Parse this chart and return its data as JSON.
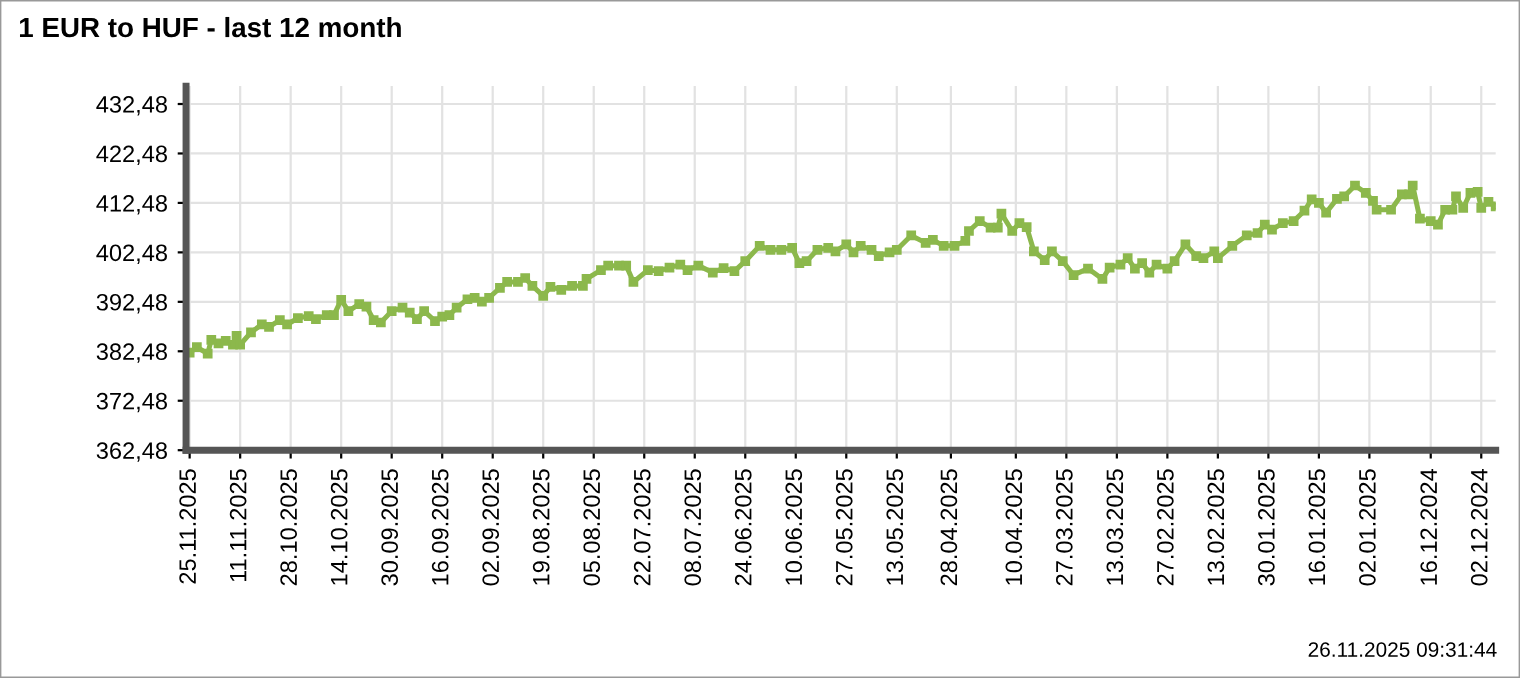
{
  "chart_data": {
    "type": "line",
    "title": "1 EUR to HUF - last 12 month",
    "x": [
      "2025-11-25",
      "2025-11-23",
      "2025-11-20",
      "2025-11-19",
      "2025-11-17",
      "2025-11-15",
      "2025-11-13",
      "2025-11-12",
      "2025-11-11",
      "2025-11-08",
      "2025-11-05",
      "2025-11-03",
      "2025-10-31",
      "2025-10-29",
      "2025-10-26",
      "2025-10-23",
      "2025-10-21",
      "2025-10-18",
      "2025-10-16",
      "2025-10-14",
      "2025-10-12",
      "2025-10-09",
      "2025-10-07",
      "2025-10-05",
      "2025-10-03",
      "2025-09-30",
      "2025-09-27",
      "2025-09-25",
      "2025-09-23",
      "2025-09-21",
      "2025-09-18",
      "2025-09-16",
      "2025-09-14",
      "2025-09-12",
      "2025-09-09",
      "2025-09-07",
      "2025-09-05",
      "2025-09-03",
      "2025-08-31",
      "2025-08-29",
      "2025-08-26",
      "2025-08-24",
      "2025-08-22",
      "2025-08-19",
      "2025-08-17",
      "2025-08-14",
      "2025-08-11",
      "2025-08-08",
      "2025-08-07",
      "2025-08-03",
      "2025-08-01",
      "2025-07-29",
      "2025-07-27",
      "2025-07-25",
      "2025-07-21",
      "2025-07-18",
      "2025-07-15",
      "2025-07-12",
      "2025-07-10",
      "2025-07-07",
      "2025-07-03",
      "2025-06-30",
      "2025-06-27",
      "2025-06-24",
      "2025-06-20",
      "2025-06-17",
      "2025-06-14",
      "2025-06-11",
      "2025-06-09",
      "2025-06-07",
      "2025-06-04",
      "2025-06-01",
      "2025-05-30",
      "2025-05-27",
      "2025-05-25",
      "2025-05-23",
      "2025-05-20",
      "2025-05-18",
      "2025-05-15",
      "2025-05-13",
      "2025-05-09",
      "2025-05-05",
      "2025-05-03",
      "2025-04-30",
      "2025-04-27",
      "2025-04-24",
      "2025-04-23",
      "2025-04-20",
      "2025-04-17",
      "2025-04-15",
      "2025-04-14",
      "2025-04-11",
      "2025-04-09",
      "2025-04-07",
      "2025-04-05",
      "2025-04-02",
      "2025-03-31",
      "2025-03-28",
      "2025-03-25",
      "2025-03-21",
      "2025-03-17",
      "2025-03-15",
      "2025-03-12",
      "2025-03-10",
      "2025-03-08",
      "2025-03-06",
      "2025-03-04",
      "2025-03-02",
      "2025-02-27",
      "2025-02-25",
      "2025-02-22",
      "2025-02-19",
      "2025-02-17",
      "2025-02-14",
      "2025-02-13",
      "2025-02-09",
      "2025-02-05",
      "2025-02-02",
      "2025-01-31",
      "2025-01-29",
      "2025-01-26",
      "2025-01-23",
      "2025-01-20",
      "2025-01-18",
      "2025-01-16",
      "2025-01-14",
      "2025-01-11",
      "2025-01-09",
      "2025-01-06",
      "2025-01-03",
      "2025-01-01",
      "2024-12-31",
      "2024-12-27",
      "2024-12-24",
      "2024-12-22",
      "2024-12-21",
      "2024-12-19",
      "2024-12-16",
      "2024-12-14",
      "2024-12-12",
      "2024-12-10",
      "2024-12-09",
      "2024-12-07",
      "2024-12-05",
      "2024-12-03",
      "2024-12-02",
      "2024-11-30",
      "2024-11-28"
    ],
    "series": [
      {
        "color": "#8cb84c",
        "values": [
          382.2,
          383.3,
          382.0,
          384.8,
          384.1,
          384.6,
          383.8,
          385.6,
          383.8,
          386.3,
          387.9,
          387.4,
          388.8,
          387.9,
          389.2,
          389.6,
          389.0,
          389.8,
          389.8,
          392.9,
          390.6,
          392.0,
          391.5,
          388.8,
          388.3,
          390.6,
          391.3,
          390.3,
          389.0,
          390.6,
          388.6,
          389.5,
          389.8,
          391.3,
          393.0,
          393.3,
          392.5,
          393.3,
          395.3,
          396.5,
          396.5,
          397.3,
          395.7,
          393.7,
          395.5,
          394.9,
          395.7,
          395.7,
          397.1,
          398.9,
          399.8,
          399.8,
          399.8,
          396.5,
          398.9,
          398.7,
          399.4,
          400.0,
          398.9,
          399.8,
          398.4,
          399.3,
          398.7,
          400.7,
          403.8,
          403.0,
          403.0,
          403.4,
          400.3,
          400.7,
          403.0,
          403.4,
          402.7,
          404.1,
          402.5,
          403.8,
          403.0,
          401.7,
          402.5,
          403.0,
          405.9,
          404.4,
          405.0,
          403.8,
          403.8,
          404.8,
          406.8,
          408.8,
          407.5,
          407.5,
          410.3,
          406.8,
          408.4,
          407.6,
          402.7,
          400.9,
          402.7,
          400.7,
          397.9,
          399.2,
          397.1,
          399.4,
          400.0,
          401.3,
          399.2,
          400.3,
          398.4,
          400.0,
          399.2,
          400.7,
          404.1,
          401.7,
          401.3,
          402.7,
          401.3,
          403.8,
          405.9,
          406.4,
          408.1,
          407.1,
          408.4,
          408.8,
          410.9,
          413.2,
          412.5,
          410.5,
          413.3,
          413.8,
          416.0,
          414.5,
          412.9,
          411.1,
          411.1,
          414.2,
          414.2,
          416.0,
          409.3,
          408.8,
          408.1,
          411.1,
          411.1,
          413.8,
          411.5,
          414.5,
          414.7,
          411.5,
          412.7,
          411.8
        ]
      }
    ],
    "xlim": [
      "2025-11-26",
      "2024-11-28"
    ],
    "xticks": [
      {
        "value": "2025-11-25",
        "label": "25.11.2025"
      },
      {
        "value": "2025-11-11",
        "label": "11.11.2025"
      },
      {
        "value": "2025-10-28",
        "label": "28.10.2025"
      },
      {
        "value": "2025-10-14",
        "label": "14.10.2025"
      },
      {
        "value": "2025-09-30",
        "label": "30.09.2025"
      },
      {
        "value": "2025-09-16",
        "label": "16.09.2025"
      },
      {
        "value": "2025-09-02",
        "label": "02.09.2025"
      },
      {
        "value": "2025-08-19",
        "label": "19.08.2025"
      },
      {
        "value": "2025-08-05",
        "label": "05.08.2025"
      },
      {
        "value": "2025-07-22",
        "label": "22.07.2025"
      },
      {
        "value": "2025-07-08",
        "label": "08.07.2025"
      },
      {
        "value": "2025-06-24",
        "label": "24.06.2025"
      },
      {
        "value": "2025-06-10",
        "label": "10.06.2025"
      },
      {
        "value": "2025-05-27",
        "label": "27.05.2025"
      },
      {
        "value": "2025-05-13",
        "label": "13.05.2025"
      },
      {
        "value": "2025-04-28",
        "label": "28.04.2025"
      },
      {
        "value": "2025-04-10",
        "label": "10.04.2025"
      },
      {
        "value": "2025-03-27",
        "label": "27.03.2025"
      },
      {
        "value": "2025-03-13",
        "label": "13.03.2025"
      },
      {
        "value": "2025-02-27",
        "label": "27.02.2025"
      },
      {
        "value": "2025-02-13",
        "label": "13.02.2025"
      },
      {
        "value": "2025-01-30",
        "label": "30.01.2025"
      },
      {
        "value": "2025-01-16",
        "label": "16.01.2025"
      },
      {
        "value": "2025-01-02",
        "label": "02.01.2025"
      },
      {
        "value": "2024-12-16",
        "label": "16.12.2024"
      },
      {
        "value": "2024-12-02",
        "label": "02.12.2024"
      }
    ],
    "ylim": [
      362.48,
      436.1
    ],
    "yticks": [
      {
        "value": 362.48,
        "label": "362,48"
      },
      {
        "value": 372.48,
        "label": "372,48"
      },
      {
        "value": 382.48,
        "label": "382,48"
      },
      {
        "value": 392.48,
        "label": "392,48"
      },
      {
        "value": 402.48,
        "label": "402,48"
      },
      {
        "value": 412.48,
        "label": "412,48"
      },
      {
        "value": 422.48,
        "label": "422,48"
      },
      {
        "value": 432.48,
        "label": "432,48"
      }
    ],
    "grid": true,
    "marker": "square",
    "line_style": "solid",
    "annotations": [
      "26.11.2025 09:31:44"
    ]
  }
}
